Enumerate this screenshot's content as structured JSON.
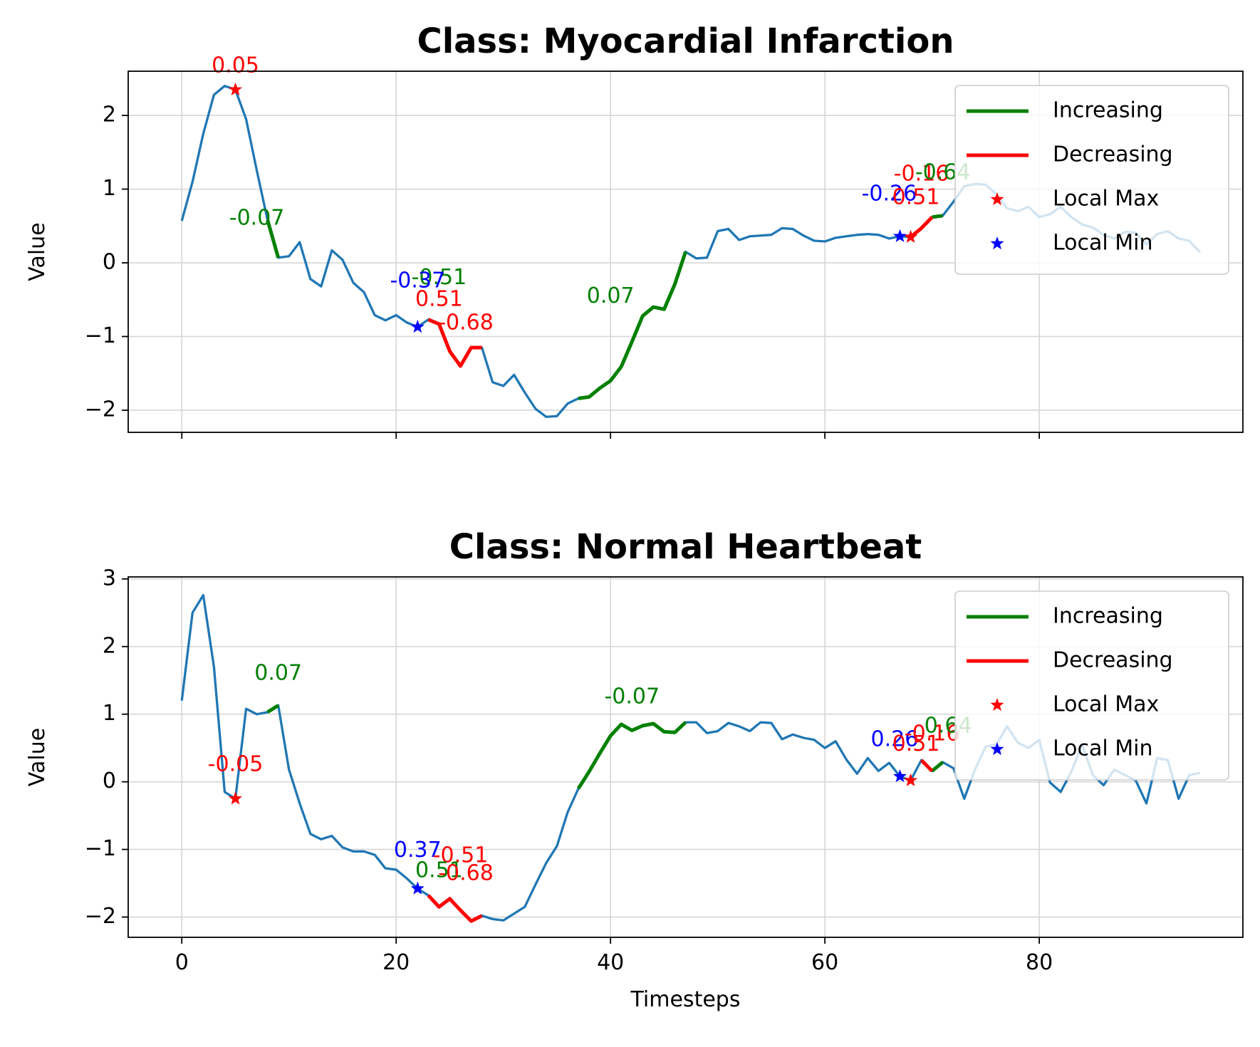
{
  "chart_data": [
    {
      "type": "line",
      "title": "Class: Myocardial Infarction",
      "xlabel": "",
      "ylabel": "Value",
      "xlim": [
        -5,
        99
      ],
      "ylim": [
        -2.3,
        2.6
      ],
      "xticks": [
        0,
        20,
        40,
        60,
        80
      ],
      "xtick_labels_visible": false,
      "yticks": [
        -2,
        -1,
        0,
        1,
        2
      ],
      "grid": true,
      "legend_position": "top-right",
      "legend": [
        {
          "label": "Increasing",
          "kind": "line",
          "color": "#008000"
        },
        {
          "label": "Decreasing",
          "kind": "line",
          "color": "#ff0000"
        },
        {
          "label": "Local Max",
          "kind": "star",
          "color": "#ff0000"
        },
        {
          "label": "Local Min",
          "kind": "star",
          "color": "#0000ff"
        }
      ],
      "series": [
        {
          "role": "signal",
          "color": "#1f77b4",
          "x": [
            0,
            1,
            2,
            3,
            4,
            5,
            6,
            7,
            8,
            9,
            10,
            11,
            12,
            13,
            14,
            15,
            16,
            17,
            18,
            19,
            20,
            21,
            22,
            23,
            24,
            25,
            26,
            27,
            28,
            29,
            30,
            31,
            32,
            33,
            34,
            35,
            36,
            37,
            38,
            39,
            40,
            41,
            42,
            43,
            44,
            45,
            46,
            47,
            48,
            49,
            50,
            51,
            52,
            53,
            54,
            55,
            56,
            57,
            58,
            59,
            60,
            61,
            62,
            63,
            64,
            65,
            66,
            67,
            68,
            69,
            70,
            71,
            72,
            73,
            74,
            75,
            76,
            77,
            78,
            79,
            80,
            81,
            82,
            83,
            84,
            85,
            86,
            87,
            88,
            89,
            90,
            91,
            92,
            93,
            94,
            95
          ],
          "y": [
            0.57,
            1.1,
            1.75,
            2.28,
            2.4,
            2.35,
            1.95,
            1.25,
            0.58,
            0.07,
            0.09,
            0.28,
            -0.22,
            -0.32,
            0.17,
            0.04,
            -0.27,
            -0.4,
            -0.71,
            -0.78,
            -0.71,
            -0.81,
            -0.87,
            -0.77,
            -0.83,
            -1.2,
            -1.4,
            -1.15,
            -1.15,
            -1.62,
            -1.67,
            -1.52,
            -1.76,
            -1.98,
            -2.09,
            -2.08,
            -1.91,
            -1.84,
            -1.82,
            -1.7,
            -1.6,
            -1.41,
            -1.07,
            -0.72,
            -0.6,
            -0.63,
            -0.29,
            0.15,
            0.06,
            0.07,
            0.43,
            0.46,
            0.31,
            0.36,
            0.37,
            0.38,
            0.47,
            0.46,
            0.37,
            0.3,
            0.29,
            0.34,
            0.36,
            0.38,
            0.39,
            0.38,
            0.33,
            0.36,
            0.35,
            0.47,
            0.62,
            0.64,
            0.83,
            1.04,
            1.07,
            1.06,
            0.93,
            0.74,
            0.7,
            0.76,
            0.62,
            0.66,
            0.76,
            0.62,
            0.52,
            0.48,
            0.38,
            0.33,
            0.42,
            0.41,
            0.25,
            0.39,
            0.43,
            0.33,
            0.3,
            0.14
          ]
        },
        {
          "role": "increasing",
          "color": "#008000",
          "x": [
            8,
            9
          ],
          "y": [
            0.58,
            0.07
          ]
        },
        {
          "role": "increasing",
          "color": "#008000",
          "x": [
            37,
            38,
            39,
            40,
            41,
            42,
            43,
            44,
            45,
            46,
            47
          ],
          "y": [
            -1.84,
            -1.82,
            -1.7,
            -1.6,
            -1.41,
            -1.07,
            -0.72,
            -0.6,
            -0.63,
            -0.29,
            0.15
          ]
        },
        {
          "role": "increasing",
          "color": "#008000",
          "x": [
            70,
            71
          ],
          "y": [
            0.62,
            0.64
          ]
        },
        {
          "role": "decreasing",
          "color": "#ff0000",
          "x": [
            23,
            24,
            25,
            26,
            27,
            28
          ],
          "y": [
            -0.77,
            -0.83,
            -1.2,
            -1.4,
            -1.15,
            -1.15
          ]
        },
        {
          "role": "decreasing",
          "color": "#ff0000",
          "x": [
            68,
            69,
            70
          ],
          "y": [
            0.35,
            0.47,
            0.62
          ]
        }
      ],
      "local_max": [
        {
          "x": 5,
          "y": 2.35
        },
        {
          "x": 68,
          "y": 0.35
        }
      ],
      "local_min": [
        {
          "x": 22,
          "y": -0.87
        },
        {
          "x": 67,
          "y": 0.36
        }
      ],
      "annotations": [
        {
          "text": "0.05",
          "x": 5,
          "y": 2.67,
          "color": "#ff0000"
        },
        {
          "text": "-0.07",
          "x": 7,
          "y": 0.6,
          "color": "#008000"
        },
        {
          "text": "-0.51",
          "x": 24,
          "y": -0.21,
          "color": "#008000"
        },
        {
          "text": "-0.37",
          "x": 22,
          "y": -0.25,
          "color": "#0000ff"
        },
        {
          "text": "0.51",
          "x": 24,
          "y": -0.5,
          "color": "#ff0000"
        },
        {
          "text": "-0.68",
          "x": 26.5,
          "y": -0.82,
          "color": "#ff0000"
        },
        {
          "text": "0.07",
          "x": 40,
          "y": -0.46,
          "color": "#008000"
        },
        {
          "text": "-0.26",
          "x": 66,
          "y": 0.93,
          "color": "#0000ff"
        },
        {
          "text": "0.51",
          "x": 68.5,
          "y": 0.88,
          "color": "#ff0000"
        },
        {
          "text": "-0.16",
          "x": 69,
          "y": 1.2,
          "color": "#ff0000"
        },
        {
          "text": "-0.64",
          "x": 71,
          "y": 1.22,
          "color": "#008000"
        }
      ]
    },
    {
      "type": "line",
      "title": "Class: Normal Heartbeat",
      "xlabel": "Timesteps",
      "ylabel": "Value",
      "xlim": [
        -5,
        99
      ],
      "ylim": [
        -2.3,
        3.03
      ],
      "xticks": [
        0,
        20,
        40,
        60,
        80
      ],
      "xtick_labels_visible": true,
      "yticks": [
        -2,
        -1,
        0,
        1,
        2,
        3
      ],
      "grid": true,
      "legend_position": "top-right",
      "legend": [
        {
          "label": "Increasing",
          "kind": "line",
          "color": "#008000"
        },
        {
          "label": "Decreasing",
          "kind": "line",
          "color": "#ff0000"
        },
        {
          "label": "Local Max",
          "kind": "star",
          "color": "#ff0000"
        },
        {
          "label": "Local Min",
          "kind": "star",
          "color": "#0000ff"
        }
      ],
      "series": [
        {
          "role": "signal",
          "color": "#1f77b4",
          "x": [
            0,
            1,
            2,
            3,
            4,
            5,
            6,
            7,
            8,
            9,
            10,
            11,
            12,
            13,
            14,
            15,
            16,
            17,
            18,
            19,
            20,
            21,
            22,
            23,
            24,
            25,
            26,
            27,
            28,
            29,
            30,
            31,
            32,
            33,
            34,
            35,
            36,
            37,
            38,
            39,
            40,
            41,
            42,
            43,
            44,
            45,
            46,
            47,
            48,
            49,
            50,
            51,
            52,
            53,
            54,
            55,
            56,
            57,
            58,
            59,
            60,
            61,
            62,
            63,
            64,
            65,
            66,
            67,
            68,
            69,
            70,
            71,
            72,
            73,
            74,
            75,
            76,
            77,
            78,
            79,
            80,
            81,
            82,
            83,
            84,
            85,
            86,
            87,
            88,
            89,
            90,
            91,
            92,
            93,
            94,
            95
          ],
          "y": [
            1.2,
            2.5,
            2.76,
            1.7,
            -0.15,
            -0.25,
            1.08,
            1.0,
            1.03,
            1.13,
            0.18,
            -0.32,
            -0.77,
            -0.85,
            -0.8,
            -0.97,
            -1.03,
            -1.03,
            -1.08,
            -1.28,
            -1.3,
            -1.43,
            -1.58,
            -1.68,
            -1.85,
            -1.73,
            -1.9,
            -2.06,
            -1.98,
            -2.03,
            -2.05,
            -1.95,
            -1.85,
            -1.52,
            -1.2,
            -0.95,
            -0.45,
            -0.1,
            0.15,
            0.42,
            0.68,
            0.85,
            0.76,
            0.83,
            0.86,
            0.74,
            0.73,
            0.88,
            0.88,
            0.72,
            0.75,
            0.87,
            0.82,
            0.75,
            0.88,
            0.87,
            0.63,
            0.7,
            0.65,
            0.62,
            0.5,
            0.6,
            0.33,
            0.12,
            0.35,
            0.16,
            0.28,
            0.08,
            0.02,
            0.32,
            0.16,
            0.29,
            0.2,
            -0.25,
            0.18,
            0.52,
            0.55,
            0.82,
            0.58,
            0.5,
            0.62,
            -0.01,
            -0.15,
            0.15,
            0.55,
            0.1,
            -0.05,
            0.18,
            0.1,
            0.02,
            -0.32,
            0.35,
            0.32,
            -0.25,
            0.1,
            0.13
          ]
        },
        {
          "role": "increasing",
          "color": "#008000",
          "x": [
            8,
            9
          ],
          "y": [
            1.03,
            1.13
          ]
        },
        {
          "role": "increasing",
          "color": "#008000",
          "x": [
            37,
            38,
            39,
            40,
            41,
            42,
            43,
            44,
            45,
            46,
            47
          ],
          "y": [
            -0.1,
            0.15,
            0.42,
            0.68,
            0.85,
            0.76,
            0.83,
            0.86,
            0.74,
            0.73,
            0.88
          ]
        },
        {
          "role": "increasing",
          "color": "#008000",
          "x": [
            70,
            71
          ],
          "y": [
            0.16,
            0.29
          ]
        },
        {
          "role": "decreasing",
          "color": "#ff0000",
          "x": [
            23,
            24,
            25,
            26,
            27,
            28
          ],
          "y": [
            -1.68,
            -1.85,
            -1.73,
            -1.9,
            -2.06,
            -1.98
          ]
        },
        {
          "role": "decreasing",
          "color": "#ff0000",
          "x": [
            69,
            70
          ],
          "y": [
            0.32,
            0.16
          ]
        }
      ],
      "local_max": [
        {
          "x": 5,
          "y": -0.25
        },
        {
          "x": 68,
          "y": 0.02
        }
      ],
      "local_min": [
        {
          "x": 22,
          "y": -1.58
        },
        {
          "x": 67,
          "y": 0.08
        }
      ],
      "annotations": [
        {
          "text": "0.07",
          "x": 9,
          "y": 1.6,
          "color": "#008000"
        },
        {
          "text": "-0.05",
          "x": 5,
          "y": 0.25,
          "color": "#ff0000"
        },
        {
          "text": "-0.07",
          "x": 42,
          "y": 1.25,
          "color": "#008000"
        },
        {
          "text": "0.37",
          "x": 22,
          "y": -1.02,
          "color": "#0000ff"
        },
        {
          "text": "-0.51",
          "x": 26,
          "y": -1.1,
          "color": "#ff0000"
        },
        {
          "text": "0.51",
          "x": 24,
          "y": -1.32,
          "color": "#008000"
        },
        {
          "text": "-0.68",
          "x": 26.5,
          "y": -1.36,
          "color": "#ff0000"
        },
        {
          "text": "0.26",
          "x": 66.5,
          "y": 0.62,
          "color": "#0000ff"
        },
        {
          "text": "0.51",
          "x": 68.5,
          "y": 0.55,
          "color": "#ff0000"
        },
        {
          "text": "-0.16",
          "x": 70,
          "y": 0.7,
          "color": "#ff0000"
        },
        {
          "text": "0.64",
          "x": 71.5,
          "y": 0.82,
          "color": "#008000"
        }
      ]
    }
  ]
}
